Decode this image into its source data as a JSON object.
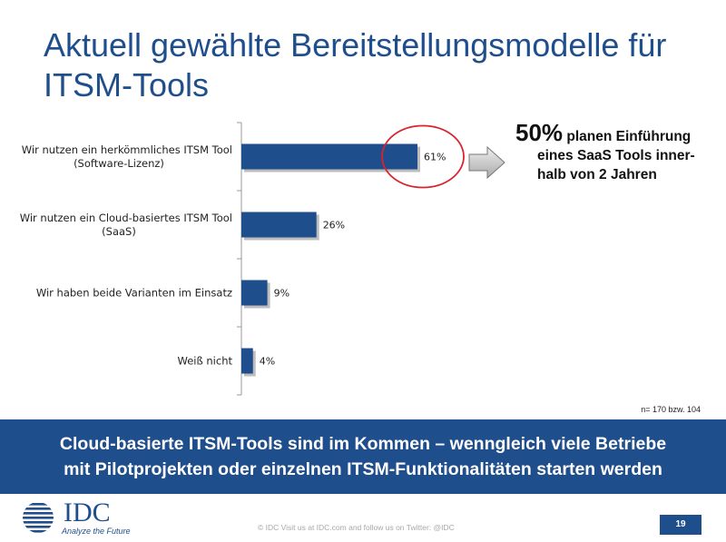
{
  "title_line1": "Aktuell gewählte Bereitstellungsmodelle für",
  "title_line2": "ITSM-Tools",
  "chart_data": {
    "type": "bar",
    "orientation": "horizontal",
    "categories": [
      [
        "Wir nutzen ein herkömmliches ITSM Tool",
        "(Software-Lizenz)"
      ],
      [
        "Wir nutzen ein Cloud-basiertes ITSM Tool",
        "(SaaS)"
      ],
      [
        "Wir haben beide Varianten im Einsatz"
      ],
      [
        "Weiß nicht"
      ]
    ],
    "values": [
      61,
      26,
      9,
      4
    ],
    "value_labels": [
      "61%",
      "26%",
      "9%",
      "4%"
    ],
    "xlim": [
      0,
      100
    ],
    "bar_color": "#1f4e8c",
    "highlight_color": "#d9232d",
    "highlighted_index": 0
  },
  "callout": {
    "percent": "50%",
    "line1": "planen Einführung",
    "line2": "eines SaaS Tools inner-",
    "line3": "halb von 2 Jahren"
  },
  "sample_note": "n= 170 bzw. 104",
  "banner": {
    "line1": "Cloud-basierte ITSM-Tools sind im Kommen – wenngleich viele Betriebe",
    "line2": "mit Pilotprojekten oder einzelnen ITSM-Funktionalitäten starten werden"
  },
  "logo": {
    "name": "IDC",
    "tagline": "Analyze the Future"
  },
  "footer": "© IDC   Visit us at IDC.com and follow us on Twitter: @IDC",
  "page_number": "19"
}
